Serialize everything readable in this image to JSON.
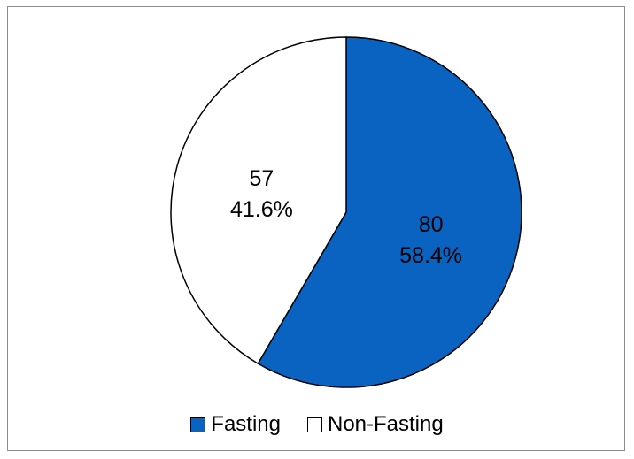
{
  "chart_data": {
    "type": "pie",
    "title": "",
    "legend_position": "bottom",
    "slices": [
      {
        "name": "Fasting",
        "value": 80,
        "percent_label": "58.4%",
        "color": "#0a63c0"
      },
      {
        "name": "Non-Fasting",
        "value": 57,
        "percent_label": "41.6%",
        "color": "#ffffff"
      }
    ],
    "border_color": "#000000",
    "start": "12 o'clock",
    "direction": "clockwise"
  }
}
